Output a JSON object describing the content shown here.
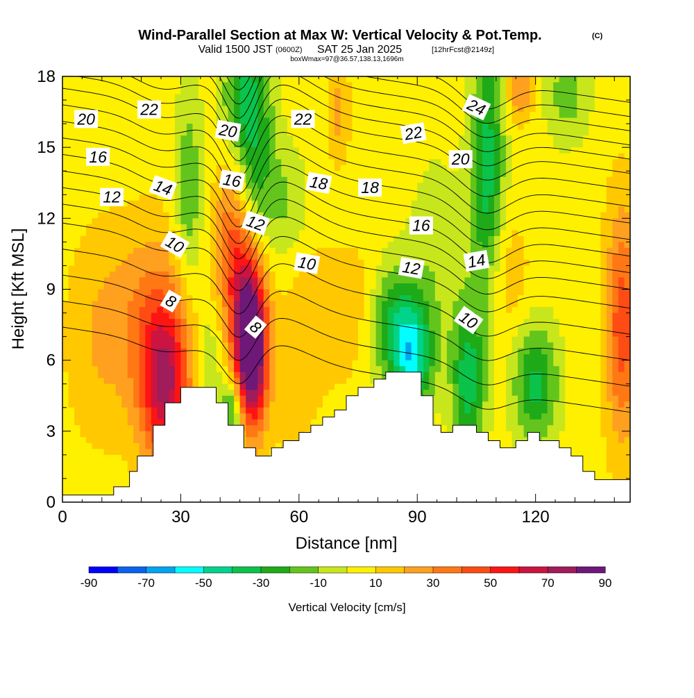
{
  "header": {
    "title": "Wind-Parallel Section at Max W: Vertical Velocity & Pot.Temp.",
    "copyright": "(C)",
    "valid_prefix": "Valid 1500 JST",
    "valid_zulu": "(0600Z)",
    "valid_date": "SAT 25 Jan 2025",
    "forecast": "[12hrFcst@2149z]",
    "boxline": "boxWmax=97@36.57,138.13,1696m"
  },
  "chart_data": {
    "type": "heatmap",
    "xlabel": "Distance [nm]",
    "ylabel": "Height [Kft MSL]",
    "xlim": [
      0,
      144
    ],
    "ylim": [
      0,
      18
    ],
    "x_ticks": [
      0,
      30,
      60,
      90,
      120
    ],
    "y_ticks": [
      0,
      3,
      6,
      9,
      12,
      15,
      18
    ],
    "colorbar": {
      "label": "Vertical Velocity [cm/s]",
      "tick_labels": [
        "-90",
        "-70",
        "-50",
        "-30",
        "-10",
        "10",
        "30",
        "50",
        "70",
        "90"
      ],
      "levels": [
        -90,
        -80,
        -70,
        -60,
        -50,
        -40,
        -30,
        -20,
        -10,
        0,
        10,
        20,
        30,
        40,
        50,
        60,
        70,
        80,
        90
      ],
      "colors": [
        "#0000ff",
        "#0a62f0",
        "#00a4ef",
        "#00ffff",
        "#00d48a",
        "#0bc24a",
        "#1faa18",
        "#63c51c",
        "#c8e61c",
        "#fff000",
        "#ffc800",
        "#ffa01e",
        "#ff7814",
        "#ff4c14",
        "#ff1414",
        "#cc1440",
        "#a01c5a",
        "#6e1878"
      ]
    },
    "terrain_kft": {
      "x": [
        0,
        13,
        13,
        17,
        17,
        19,
        19,
        23,
        23,
        26,
        26,
        30,
        30,
        39,
        39,
        42,
        42,
        46,
        46,
        49,
        49,
        53,
        53,
        56,
        56,
        60,
        60,
        63,
        63,
        66,
        66,
        69,
        69,
        72,
        72,
        75,
        75,
        79,
        79,
        82,
        82,
        91,
        91,
        94,
        94,
        96,
        96,
        99,
        99,
        105,
        105,
        108,
        108,
        111,
        111,
        115,
        115,
        118,
        118,
        121,
        121,
        126,
        126,
        129,
        129,
        132,
        132,
        135,
        135,
        138,
        138,
        141,
        141,
        144
      ],
      "y": [
        0.3,
        0.3,
        0.65,
        0.65,
        1.3,
        1.3,
        1.95,
        1.95,
        3.25,
        3.25,
        4.2,
        4.2,
        4.85,
        4.85,
        4.2,
        4.2,
        3.25,
        3.25,
        2.3,
        2.3,
        1.95,
        1.95,
        2.3,
        2.3,
        2.6,
        2.6,
        2.95,
        2.95,
        3.25,
        3.25,
        3.6,
        3.6,
        3.9,
        3.9,
        4.5,
        4.5,
        4.85,
        4.85,
        5.2,
        5.2,
        5.5,
        5.5,
        4.5,
        4.5,
        3.25,
        3.25,
        2.95,
        2.95,
        3.25,
        3.25,
        2.95,
        2.95,
        2.6,
        2.6,
        2.3,
        2.3,
        2.6,
        2.6,
        2.95,
        2.95,
        2.6,
        2.6,
        2.3,
        2.3,
        1.95,
        1.95,
        1.3,
        1.3,
        0.95,
        0.95,
        0.95,
        0.95,
        0.95,
        0.95
      ]
    },
    "w_features": [
      {
        "x": 26,
        "y": 4.8,
        "sx": 4.5,
        "sy": 2.4,
        "w": 58
      },
      {
        "x": 23,
        "y": 7.8,
        "sx": 7,
        "sy": 2.8,
        "w": 25
      },
      {
        "x": 9,
        "y": 7,
        "sx": 6,
        "sy": 3.2,
        "w": 14
      },
      {
        "x": 48,
        "y": 6.2,
        "sx": 2.8,
        "sy": 2.2,
        "w": 90
      },
      {
        "x": 46,
        "y": 8.8,
        "sx": 3.5,
        "sy": 2.4,
        "w": 45
      },
      {
        "x": 42,
        "y": 11.5,
        "sx": 3,
        "sy": 2,
        "w": 22
      },
      {
        "x": 43,
        "y": 3.9,
        "sx": 2,
        "sy": 1,
        "w": -35
      },
      {
        "x": 37,
        "y": 6,
        "sx": 2.5,
        "sy": 1.5,
        "w": -18
      },
      {
        "x": 32,
        "y": 13,
        "sx": 2.5,
        "sy": 3,
        "w": -25
      },
      {
        "x": 49,
        "y": 15,
        "sx": 3.5,
        "sy": 3,
        "w": -32
      },
      {
        "x": 45,
        "y": 17.3,
        "sx": 3.5,
        "sy": 1.5,
        "w": -25
      },
      {
        "x": 57,
        "y": 12.5,
        "sx": 4,
        "sy": 1.8,
        "w": -15
      },
      {
        "x": 84,
        "y": 7.5,
        "sx": 5,
        "sy": 1.8,
        "w": -40
      },
      {
        "x": 89,
        "y": 6,
        "sx": 3.5,
        "sy": 1.5,
        "w": -45
      },
      {
        "x": 103,
        "y": 5.2,
        "sx": 3,
        "sy": 2.2,
        "w": -42
      },
      {
        "x": 120,
        "y": 5,
        "sx": 4,
        "sy": 1.8,
        "w": -38
      },
      {
        "x": 95,
        "y": 10.5,
        "sx": 5,
        "sy": 3,
        "w": -12
      },
      {
        "x": 108,
        "y": 15.5,
        "sx": 3,
        "sy": 4,
        "w": -30
      },
      {
        "x": 107,
        "y": 12,
        "sx": 3,
        "sy": 3,
        "w": -15
      },
      {
        "x": 128,
        "y": 17.3,
        "sx": 4,
        "sy": 1.5,
        "w": -20
      },
      {
        "x": 75,
        "y": 8,
        "sx": 6,
        "sy": 2,
        "w": 15
      },
      {
        "x": 62,
        "y": 7.5,
        "sx": 5,
        "sy": 2.5,
        "w": 12
      },
      {
        "x": 142,
        "y": 7.5,
        "sx": 3,
        "sy": 3.5,
        "w": 42
      },
      {
        "x": 113,
        "y": 9.5,
        "sx": 4,
        "sy": 2,
        "w": 12
      },
      {
        "x": 70,
        "y": 16.5,
        "sx": 2,
        "sy": 1.5,
        "w": 18
      },
      {
        "x": 116,
        "y": 17.5,
        "sx": 2.5,
        "sy": 1,
        "w": 25
      },
      {
        "x": 58,
        "y": 4,
        "sx": 3,
        "sy": 1.5,
        "w": 10
      }
    ],
    "w_background": 5,
    "theta_contours": {
      "levels": [
        8,
        9,
        10,
        11,
        12,
        13,
        14,
        15,
        16,
        17,
        18,
        19,
        20,
        21,
        22,
        23,
        24,
        25
      ],
      "base_kft": [
        5.6,
        6.7,
        7.8,
        8.9,
        10.0,
        10.8,
        11.5,
        12.2,
        12.9,
        13.6,
        14.3,
        15.0,
        15.7,
        16.3,
        16.9,
        17.5,
        18.1,
        18.7
      ],
      "tilt_kft_per_nm": -0.025,
      "waves": [
        {
          "x": 45,
          "sx": 4,
          "a": -2.4
        },
        {
          "x": 55,
          "sx": 8,
          "a": 1.0
        },
        {
          "x": 25,
          "sx": 6,
          "a": -0.6
        },
        {
          "x": 107,
          "sx": 6,
          "a": -1.2
        }
      ],
      "labels": [
        {
          "text": "20",
          "x": 6,
          "y": 16.2,
          "rot": 0
        },
        {
          "text": "22",
          "x": 22,
          "y": 16.6,
          "rot": 0
        },
        {
          "text": "20",
          "x": 42,
          "y": 15.7,
          "rot": 10
        },
        {
          "text": "22",
          "x": 61,
          "y": 16.2,
          "rot": 0
        },
        {
          "text": "22",
          "x": 89,
          "y": 15.6,
          "rot": -10
        },
        {
          "text": "24",
          "x": 105,
          "y": 16.7,
          "rot": 25
        },
        {
          "text": "16",
          "x": 9,
          "y": 14.6,
          "rot": 0
        },
        {
          "text": "12",
          "x": 12.5,
          "y": 12.9,
          "rot": 0
        },
        {
          "text": "14",
          "x": 25.5,
          "y": 13.3,
          "rot": 20
        },
        {
          "text": "16",
          "x": 43,
          "y": 13.6,
          "rot": 10
        },
        {
          "text": "18",
          "x": 65,
          "y": 13.5,
          "rot": 10
        },
        {
          "text": "18",
          "x": 78,
          "y": 13.3,
          "rot": 0
        },
        {
          "text": "20",
          "x": 101,
          "y": 14.5,
          "rot": 0
        },
        {
          "text": "12",
          "x": 49,
          "y": 11.8,
          "rot": 20
        },
        {
          "text": "10",
          "x": 28.5,
          "y": 10.9,
          "rot": 30
        },
        {
          "text": "16",
          "x": 91,
          "y": 11.7,
          "rot": 0
        },
        {
          "text": "10",
          "x": 62,
          "y": 10.1,
          "rot": 10
        },
        {
          "text": "12",
          "x": 88.5,
          "y": 9.9,
          "rot": 10
        },
        {
          "text": "14",
          "x": 105,
          "y": 10.2,
          "rot": -10
        },
        {
          "text": "8",
          "x": 27.5,
          "y": 8.5,
          "rot": 30
        },
        {
          "text": "8",
          "x": 49,
          "y": 7.4,
          "rot": 40
        },
        {
          "text": "10",
          "x": 103,
          "y": 7.7,
          "rot": 35
        }
      ]
    }
  }
}
